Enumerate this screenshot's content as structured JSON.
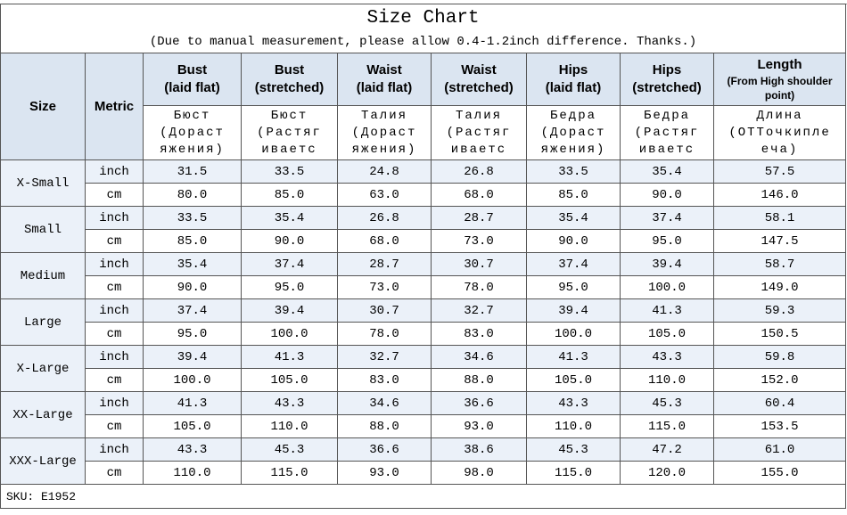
{
  "title": "Size Chart",
  "subtitle": "(Due to manual measurement, please allow 0.4-1.2inch difference. Thanks.)",
  "header": {
    "columns": [
      [
        "Size"
      ],
      [
        "Metric"
      ],
      [
        "Bust",
        "(laid flat)"
      ],
      [
        "Bust",
        "(stretched)"
      ],
      [
        "Waist",
        "(laid flat)"
      ],
      [
        "Waist",
        "(stretched)"
      ],
      [
        "Hips",
        "(laid flat)"
      ],
      [
        "Hips",
        "(stretched)"
      ],
      [
        "Length",
        "(From High shoulder",
        "point)"
      ]
    ],
    "russian": [
      [
        "Бюст",
        "(Дораст",
        "яжения)"
      ],
      [
        "Бюст",
        "(Растяг",
        "иваетс"
      ],
      [
        "Талия",
        "(Дораст",
        "яжения)"
      ],
      [
        "Талия",
        "(Растяг",
        "иваетс"
      ],
      [
        "Бедра",
        "(Дораст",
        "яжения)"
      ],
      [
        "Бедра",
        "(Растяг",
        "иваетс"
      ],
      [
        "Длина",
        "(ОТТочкипле",
        "еча)"
      ]
    ]
  },
  "sizes": [
    {
      "size": "X-Small",
      "rows": [
        [
          "inch",
          "31.5",
          "33.5",
          "24.8",
          "26.8",
          "33.5",
          "35.4",
          "57.5"
        ],
        [
          "cm",
          "80.0",
          "85.0",
          "63.0",
          "68.0",
          "85.0",
          "90.0",
          "146.0"
        ]
      ]
    },
    {
      "size": "Small",
      "rows": [
        [
          "inch",
          "33.5",
          "35.4",
          "26.8",
          "28.7",
          "35.4",
          "37.4",
          "58.1"
        ],
        [
          "cm",
          "85.0",
          "90.0",
          "68.0",
          "73.0",
          "90.0",
          "95.0",
          "147.5"
        ]
      ]
    },
    {
      "size": "Medium",
      "rows": [
        [
          "inch",
          "35.4",
          "37.4",
          "28.7",
          "30.7",
          "37.4",
          "39.4",
          "58.7"
        ],
        [
          "cm",
          "90.0",
          "95.0",
          "73.0",
          "78.0",
          "95.0",
          "100.0",
          "149.0"
        ]
      ]
    },
    {
      "size": "Large",
      "rows": [
        [
          "inch",
          "37.4",
          "39.4",
          "30.7",
          "32.7",
          "39.4",
          "41.3",
          "59.3"
        ],
        [
          "cm",
          "95.0",
          "100.0",
          "78.0",
          "83.0",
          "100.0",
          "105.0",
          "150.5"
        ]
      ]
    },
    {
      "size": "X-Large",
      "rows": [
        [
          "inch",
          "39.4",
          "41.3",
          "32.7",
          "34.6",
          "41.3",
          "43.3",
          "59.8"
        ],
        [
          "cm",
          "100.0",
          "105.0",
          "83.0",
          "88.0",
          "105.0",
          "110.0",
          "152.0"
        ]
      ]
    },
    {
      "size": "XX-Large",
      "rows": [
        [
          "inch",
          "41.3",
          "43.3",
          "34.6",
          "36.6",
          "43.3",
          "45.3",
          "60.4"
        ],
        [
          "cm",
          "105.0",
          "110.0",
          "88.0",
          "93.0",
          "110.0",
          "115.0",
          "153.5"
        ]
      ]
    },
    {
      "size": "XXX-Large",
      "rows": [
        [
          "inch",
          "43.3",
          "45.3",
          "36.6",
          "38.6",
          "45.3",
          "47.2",
          "61.0"
        ],
        [
          "cm",
          "110.0",
          "115.0",
          "93.0",
          "98.0",
          "115.0",
          "120.0",
          "155.0"
        ]
      ]
    }
  ],
  "sku": "SKU: E1952"
}
